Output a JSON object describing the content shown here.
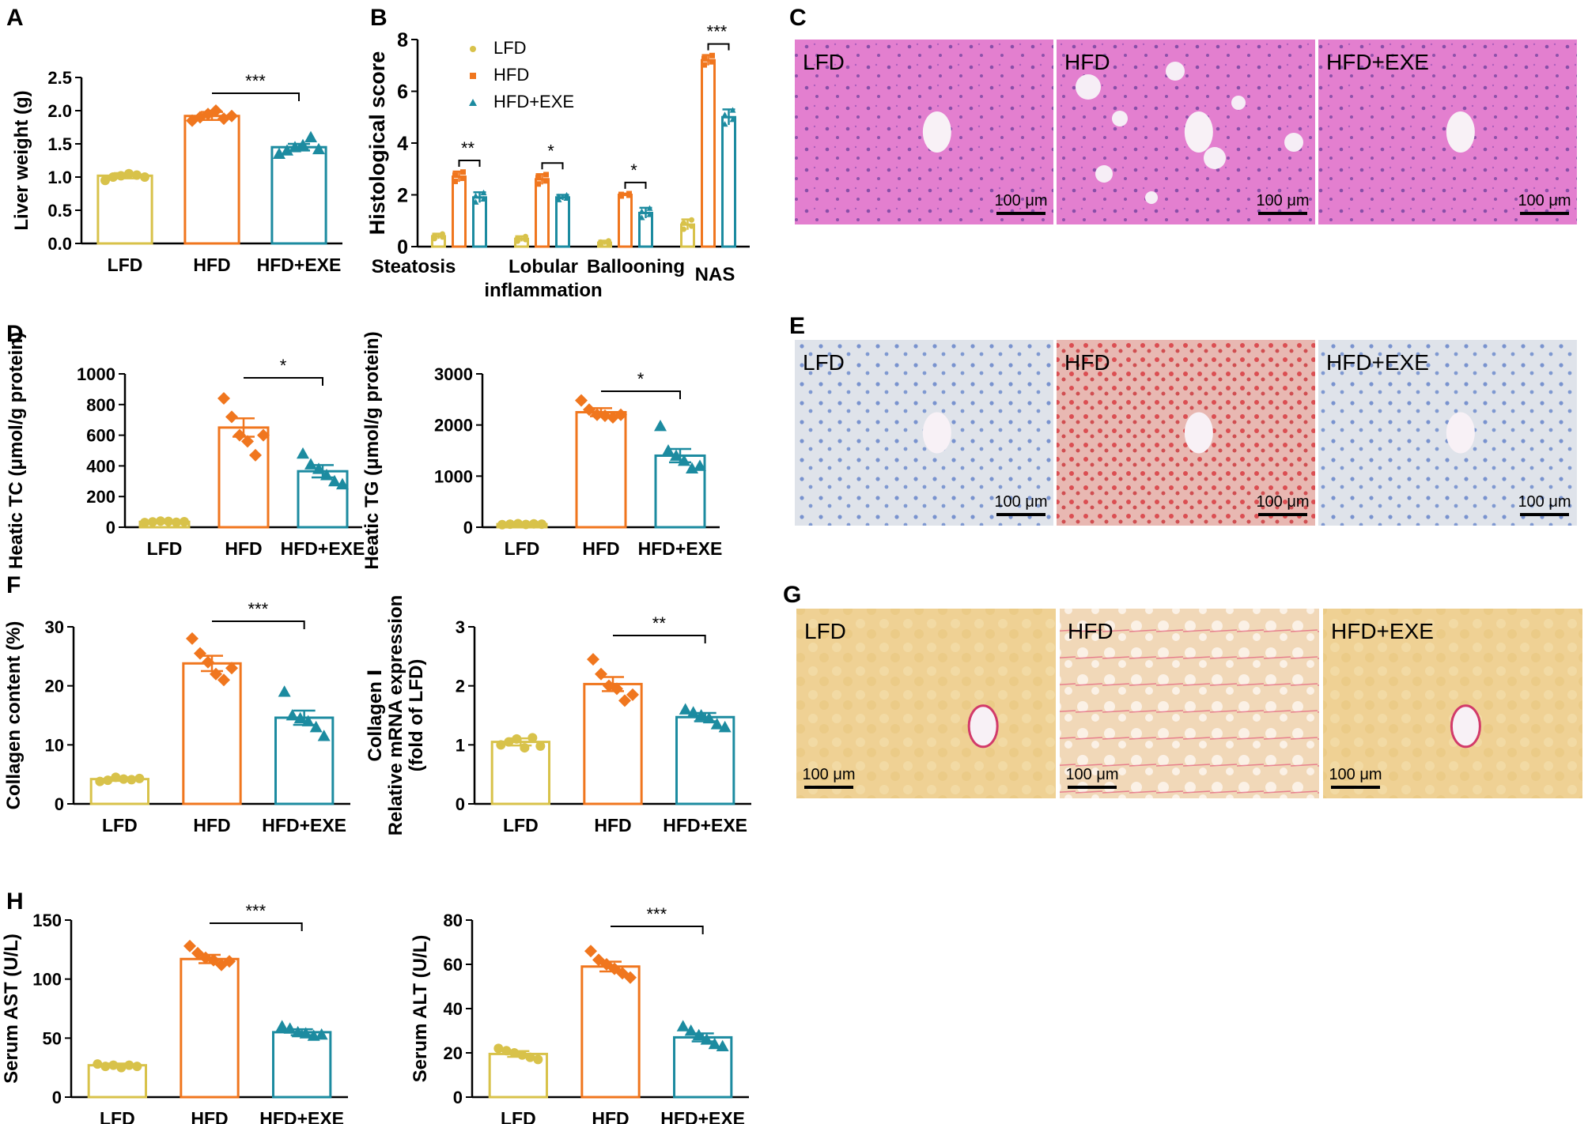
{
  "colors": {
    "LFD": "#d8c24a",
    "HFD": "#f0761e",
    "HFD+EXE": "#1c8ba0",
    "he_bg": "#e37fcf",
    "oil_bg": "#dfe3ea",
    "oil_red_bg": "#e8b8b2",
    "sirius_bg": "#efd194"
  },
  "panel_letters": [
    "A",
    "B",
    "C",
    "D",
    "E",
    "F",
    "G",
    "H"
  ],
  "chart_data": [
    {
      "id": "A",
      "type": "bar",
      "title": "",
      "categories": [
        "LFD",
        "HFD",
        "HFD+EXE"
      ],
      "values": [
        1.02,
        1.92,
        1.45
      ],
      "errors": [
        0.04,
        0.06,
        0.05
      ],
      "points": [
        [
          0.95,
          1.0,
          1.02,
          1.05,
          1.03,
          1.0
        ],
        [
          1.85,
          1.9,
          1.95,
          2.0,
          1.88,
          1.92
        ],
        [
          1.35,
          1.4,
          1.45,
          1.48,
          1.6,
          1.42
        ]
      ],
      "ylabel": "Liver weight (g)",
      "ylim": [
        0,
        2.5
      ],
      "yticks": [
        "0.0",
        "0.5",
        "1.0",
        "1.5",
        "2.0",
        "2.5"
      ],
      "sig": [
        {
          "from": 1,
          "to": 2,
          "label": "***"
        }
      ]
    },
    {
      "id": "B",
      "type": "bar",
      "title": "",
      "categories": [
        "Steatosis",
        "Lobular inflammation",
        "Ballooning",
        "NAS"
      ],
      "series": [
        {
          "name": "LFD",
          "values": [
            0.4,
            0.3,
            0.15,
            0.85
          ],
          "errors": [
            0.1,
            0.1,
            0.08,
            0.2
          ]
        },
        {
          "name": "HFD",
          "values": [
            2.7,
            2.6,
            2.0,
            7.2
          ],
          "errors": [
            0.2,
            0.2,
            0.05,
            0.2
          ]
        },
        {
          "name": "HFD+EXE",
          "values": [
            1.9,
            1.9,
            1.3,
            5.0
          ],
          "errors": [
            0.2,
            0.1,
            0.2,
            0.3
          ]
        }
      ],
      "ylabel": "Histological score",
      "ylim": [
        0,
        8
      ],
      "yticks": [
        "0",
        "2",
        "4",
        "6",
        "8"
      ],
      "legend": [
        "LFD",
        "HFD",
        "HFD+EXE"
      ],
      "sig": [
        {
          "group": 0,
          "label": "**"
        },
        {
          "group": 1,
          "label": "*"
        },
        {
          "group": 2,
          "label": "*"
        },
        {
          "group": 3,
          "label": "***"
        }
      ]
    },
    {
      "id": "D1",
      "type": "bar",
      "title": "",
      "categories": [
        "LFD",
        "HFD",
        "HFD+EXE"
      ],
      "values": [
        35,
        650,
        365
      ],
      "errors": [
        5,
        60,
        40
      ],
      "points": [
        [
          30,
          35,
          40,
          38,
          32,
          36
        ],
        [
          840,
          720,
          600,
          560,
          470,
          600
        ],
        [
          480,
          410,
          380,
          340,
          300,
          280
        ]
      ],
      "ylabel": "Heatic TC (μmol/g protein)",
      "ylim": [
        0,
        1000
      ],
      "yticks": [
        "0",
        "200",
        "400",
        "600",
        "800",
        "1000"
      ],
      "sig": [
        {
          "from": 1,
          "to": 2,
          "label": "*"
        }
      ]
    },
    {
      "id": "D2",
      "type": "bar",
      "title": "",
      "categories": [
        "LFD",
        "HFD",
        "HFD+EXE"
      ],
      "values": [
        60,
        2250,
        1400
      ],
      "errors": [
        10,
        80,
        130
      ],
      "points": [
        [
          50,
          60,
          70,
          55,
          65,
          60
        ],
        [
          2480,
          2300,
          2200,
          2180,
          2150,
          2200
        ],
        [
          1980,
          1500,
          1400,
          1300,
          1150,
          1200
        ]
      ],
      "ylabel": "Heatic TG (μmol/g protein)",
      "ylim": [
        0,
        3000
      ],
      "yticks": [
        "0",
        "1000",
        "2000",
        "3000"
      ],
      "sig": [
        {
          "from": 1,
          "to": 2,
          "label": "*"
        }
      ]
    },
    {
      "id": "F1",
      "type": "bar",
      "title": "",
      "categories": [
        "LFD",
        "HFD",
        "HFD+EXE"
      ],
      "values": [
        4.2,
        23.8,
        14.6
      ],
      "errors": [
        0.3,
        1.3,
        1.2
      ],
      "points": [
        [
          3.8,
          4.0,
          4.5,
          4.2,
          4.1,
          4.3
        ],
        [
          28,
          25.5,
          24,
          22,
          21,
          23
        ],
        [
          19,
          15,
          14.5,
          14,
          13,
          11.5
        ]
      ],
      "ylabel": "Collagen content (%)",
      "ylim": [
        0,
        30
      ],
      "yticks": [
        "0",
        "10",
        "20",
        "30"
      ],
      "sig": [
        {
          "from": 1,
          "to": 2,
          "label": "***"
        }
      ]
    },
    {
      "id": "F2",
      "type": "bar",
      "title": "",
      "categories": [
        "LFD",
        "HFD",
        "HFD+EXE"
      ],
      "values": [
        1.05,
        2.03,
        1.47
      ],
      "errors": [
        0.06,
        0.12,
        0.07
      ],
      "points": [
        [
          1.0,
          1.05,
          1.1,
          0.95,
          1.12,
          0.98
        ],
        [
          2.45,
          2.2,
          2.0,
          1.95,
          1.75,
          1.85
        ],
        [
          1.6,
          1.55,
          1.5,
          1.45,
          1.35,
          1.3
        ]
      ],
      "ylabel_lines": [
        "Collagen Ⅰ",
        "Relative mRNA expression",
        "(fold of LFD)"
      ],
      "ylim": [
        0,
        3
      ],
      "yticks": [
        "0",
        "1",
        "2",
        "3"
      ],
      "sig": [
        {
          "from": 1,
          "to": 2,
          "label": "**"
        }
      ]
    },
    {
      "id": "H1",
      "type": "bar",
      "title": "",
      "categories": [
        "LFD",
        "HFD",
        "HFD+EXE"
      ],
      "values": [
        27,
        117,
        55
      ],
      "errors": [
        1.5,
        3.5,
        2.5
      ],
      "points": [
        [
          28,
          26,
          27,
          25,
          27,
          26
        ],
        [
          128,
          122,
          118,
          116,
          112,
          115
        ],
        [
          60,
          58,
          55,
          54,
          52,
          53
        ]
      ],
      "ylabel": "Serum AST (U/L)",
      "ylim": [
        0,
        150
      ],
      "yticks": [
        "0",
        "50",
        "100",
        "150"
      ],
      "sig": [
        {
          "from": 1,
          "to": 2,
          "label": "***"
        }
      ]
    },
    {
      "id": "H2",
      "type": "bar",
      "title": "",
      "categories": [
        "LFD",
        "HFD",
        "HFD+EXE"
      ],
      "values": [
        19.5,
        59,
        27
      ],
      "errors": [
        1.3,
        2.2,
        1.8
      ],
      "points": [
        [
          22,
          21,
          20,
          19,
          18,
          17
        ],
        [
          66,
          62,
          60,
          58,
          56,
          54
        ],
        [
          32,
          30,
          28,
          26,
          24,
          23
        ]
      ],
      "ylabel": "Serum ALT (U/L)",
      "ylim": [
        0,
        80
      ],
      "yticks": [
        "0",
        "20",
        "40",
        "60",
        "80"
      ],
      "sig": [
        {
          "from": 1,
          "to": 2,
          "label": "***"
        }
      ]
    }
  ],
  "micrographs": [
    {
      "panel": "C",
      "stain": "he",
      "labels": [
        "LFD",
        "HFD",
        "HFD+EXE"
      ],
      "scale": "100 μm"
    },
    {
      "panel": "E",
      "stain": "oil",
      "labels": [
        "LFD",
        "HFD",
        "HFD+EXE"
      ],
      "scale": "100 μm"
    },
    {
      "panel": "G",
      "stain": "sirius",
      "labels": [
        "LFD",
        "HFD",
        "HFD+EXE"
      ],
      "scale": "100 μm"
    }
  ]
}
